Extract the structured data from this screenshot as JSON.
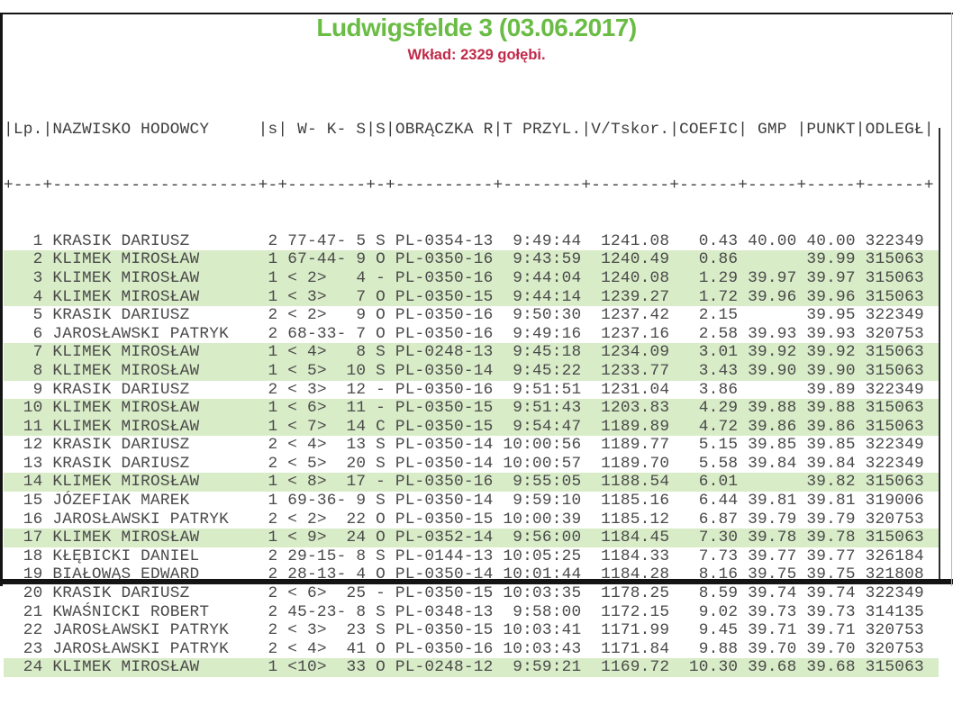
{
  "page": {
    "title": "Ludwigsfelde 3 (03.06.2017)",
    "subtitle": "Wkład: 2329 gołębi."
  },
  "colors": {
    "title_green": "#6abc45",
    "subtitle_red": "#c12949",
    "highlight_green": "#d9ecc8",
    "text_gray": "#4a4a4a",
    "header_gray": "#3d3d3d",
    "border_black": "#141414"
  },
  "table": {
    "header_line": "|Lp.|NAZWISKO HODOWCY     |s| W- K- S|S|OBRĄCZKA R|T PRZYL.|V/Tskor.|COEFIC| GMP |PUNKT|ODLEGŁ|",
    "separator_line": "+---+---------------------+-+--------+-+----------+--------+--------+------+-----+-----+------+",
    "columns": [
      "Lp.",
      "NAZWISKO HODOWCY",
      "s",
      "W- K- S",
      "S",
      "OBRĄCZKA R",
      "T PRZYL.",
      "V/Tskor.",
      "COEFIC",
      "GMP",
      "PUNKT",
      "ODLEGŁ"
    ],
    "rows": [
      {
        "lp": "1",
        "name": "KRASIK DARIUSZ",
        "s": "2",
        "wks": "77-47- 5",
        "sex": "S",
        "ring": "PL-0354-13",
        "time": "9:49:44",
        "v": "1241.08",
        "coef": "0.43",
        "gmp": "40.00",
        "punkt": "40.00",
        "dist": "322349",
        "hl": false
      },
      {
        "lp": "2",
        "name": "KLIMEK MIROSŁAW",
        "s": "1",
        "wks": "67-44- 9",
        "sex": "O",
        "ring": "PL-0350-16",
        "time": "9:43:59",
        "v": "1240.49",
        "coef": "0.86",
        "gmp": "",
        "punkt": "39.99",
        "dist": "315063",
        "hl": true
      },
      {
        "lp": "3",
        "name": "KLIMEK MIROSŁAW",
        "s": "1",
        "wks": "< 2>   4",
        "sex": "-",
        "ring": "PL-0350-16",
        "time": "9:44:04",
        "v": "1240.08",
        "coef": "1.29",
        "gmp": "39.97",
        "punkt": "39.97",
        "dist": "315063",
        "hl": true
      },
      {
        "lp": "4",
        "name": "KLIMEK MIROSŁAW",
        "s": "1",
        "wks": "< 3>   7",
        "sex": "O",
        "ring": "PL-0350-15",
        "time": "9:44:14",
        "v": "1239.27",
        "coef": "1.72",
        "gmp": "39.96",
        "punkt": "39.96",
        "dist": "315063",
        "hl": true
      },
      {
        "lp": "5",
        "name": "KRASIK DARIUSZ",
        "s": "2",
        "wks": "< 2>   9",
        "sex": "O",
        "ring": "PL-0350-16",
        "time": "9:50:30",
        "v": "1237.42",
        "coef": "2.15",
        "gmp": "",
        "punkt": "39.95",
        "dist": "322349",
        "hl": false
      },
      {
        "lp": "6",
        "name": "JAROSŁAWSKI PATRYK",
        "s": "2",
        "wks": "68-33- 7",
        "sex": "O",
        "ring": "PL-0350-16",
        "time": "9:49:16",
        "v": "1237.16",
        "coef": "2.58",
        "gmp": "39.93",
        "punkt": "39.93",
        "dist": "320753",
        "hl": false
      },
      {
        "lp": "7",
        "name": "KLIMEK MIROSŁAW",
        "s": "1",
        "wks": "< 4>   8",
        "sex": "S",
        "ring": "PL-0248-13",
        "time": "9:45:18",
        "v": "1234.09",
        "coef": "3.01",
        "gmp": "39.92",
        "punkt": "39.92",
        "dist": "315063",
        "hl": true
      },
      {
        "lp": "8",
        "name": "KLIMEK MIROSŁAW",
        "s": "1",
        "wks": "< 5>  10",
        "sex": "S",
        "ring": "PL-0350-14",
        "time": "9:45:22",
        "v": "1233.77",
        "coef": "3.43",
        "gmp": "39.90",
        "punkt": "39.90",
        "dist": "315063",
        "hl": true
      },
      {
        "lp": "9",
        "name": "KRASIK DARIUSZ",
        "s": "2",
        "wks": "< 3>  12",
        "sex": "-",
        "ring": "PL-0350-16",
        "time": "9:51:51",
        "v": "1231.04",
        "coef": "3.86",
        "gmp": "",
        "punkt": "39.89",
        "dist": "322349",
        "hl": false
      },
      {
        "lp": "10",
        "name": "KLIMEK MIROSŁAW",
        "s": "1",
        "wks": "< 6>  11",
        "sex": "-",
        "ring": "PL-0350-15",
        "time": "9:51:43",
        "v": "1203.83",
        "coef": "4.29",
        "gmp": "39.88",
        "punkt": "39.88",
        "dist": "315063",
        "hl": true
      },
      {
        "lp": "11",
        "name": "KLIMEK MIROSŁAW",
        "s": "1",
        "wks": "< 7>  14",
        "sex": "C",
        "ring": "PL-0350-15",
        "time": "9:54:47",
        "v": "1189.89",
        "coef": "4.72",
        "gmp": "39.86",
        "punkt": "39.86",
        "dist": "315063",
        "hl": true
      },
      {
        "lp": "12",
        "name": "KRASIK DARIUSZ",
        "s": "2",
        "wks": "< 4>  13",
        "sex": "S",
        "ring": "PL-0350-14",
        "time": "10:00:56",
        "v": "1189.77",
        "coef": "5.15",
        "gmp": "39.85",
        "punkt": "39.85",
        "dist": "322349",
        "hl": false
      },
      {
        "lp": "13",
        "name": "KRASIK DARIUSZ",
        "s": "2",
        "wks": "< 5>  20",
        "sex": "S",
        "ring": "PL-0350-14",
        "time": "10:00:57",
        "v": "1189.70",
        "coef": "5.58",
        "gmp": "39.84",
        "punkt": "39.84",
        "dist": "322349",
        "hl": false
      },
      {
        "lp": "14",
        "name": "KLIMEK MIROSŁAW",
        "s": "1",
        "wks": "< 8>  17",
        "sex": "-",
        "ring": "PL-0350-16",
        "time": "9:55:05",
        "v": "1188.54",
        "coef": "6.01",
        "gmp": "",
        "punkt": "39.82",
        "dist": "315063",
        "hl": true
      },
      {
        "lp": "15",
        "name": "JÓZEFIAK MAREK",
        "s": "1",
        "wks": "69-36- 9",
        "sex": "S",
        "ring": "PL-0350-14",
        "time": "9:59:10",
        "v": "1185.16",
        "coef": "6.44",
        "gmp": "39.81",
        "punkt": "39.81",
        "dist": "319006",
        "hl": false
      },
      {
        "lp": "16",
        "name": "JAROSŁAWSKI PATRYK",
        "s": "2",
        "wks": "< 2>  22",
        "sex": "O",
        "ring": "PL-0350-15",
        "time": "10:00:39",
        "v": "1185.12",
        "coef": "6.87",
        "gmp": "39.79",
        "punkt": "39.79",
        "dist": "320753",
        "hl": false
      },
      {
        "lp": "17",
        "name": "KLIMEK MIROSŁAW",
        "s": "1",
        "wks": "< 9>  24",
        "sex": "O",
        "ring": "PL-0352-14",
        "time": "9:56:00",
        "v": "1184.45",
        "coef": "7.30",
        "gmp": "39.78",
        "punkt": "39.78",
        "dist": "315063",
        "hl": true
      },
      {
        "lp": "18",
        "name": "KŁĘBICKI DANIEL",
        "s": "2",
        "wks": "29-15- 8",
        "sex": "S",
        "ring": "PL-0144-13",
        "time": "10:05:25",
        "v": "1184.33",
        "coef": "7.73",
        "gmp": "39.77",
        "punkt": "39.77",
        "dist": "326184",
        "hl": false
      },
      {
        "lp": "19",
        "name": "BIAŁOWĄS EDWARD",
        "s": "2",
        "wks": "28-13- 4",
        "sex": "O",
        "ring": "PL-0350-14",
        "time": "10:01:44",
        "v": "1184.28",
        "coef": "8.16",
        "gmp": "39.75",
        "punkt": "39.75",
        "dist": "321808",
        "hl": false
      },
      {
        "lp": "20",
        "name": "KRASIK DARIUSZ",
        "s": "2",
        "wks": "< 6>  25",
        "sex": "-",
        "ring": "PL-0350-15",
        "time": "10:03:35",
        "v": "1178.25",
        "coef": "8.59",
        "gmp": "39.74",
        "punkt": "39.74",
        "dist": "322349",
        "hl": false
      },
      {
        "lp": "21",
        "name": "KWAŚNICKI ROBERT",
        "s": "2",
        "wks": "45-23- 8",
        "sex": "S",
        "ring": "PL-0348-13",
        "time": "9:58:00",
        "v": "1172.15",
        "coef": "9.02",
        "gmp": "39.73",
        "punkt": "39.73",
        "dist": "314135",
        "hl": false
      },
      {
        "lp": "22",
        "name": "JAROSŁAWSKI PATRYK",
        "s": "2",
        "wks": "< 3>  23",
        "sex": "S",
        "ring": "PL-0350-15",
        "time": "10:03:41",
        "v": "1171.99",
        "coef": "9.45",
        "gmp": "39.71",
        "punkt": "39.71",
        "dist": "320753",
        "hl": false
      },
      {
        "lp": "23",
        "name": "JAROSŁAWSKI PATRYK",
        "s": "2",
        "wks": "< 4>  41",
        "sex": "O",
        "ring": "PL-0350-16",
        "time": "10:03:43",
        "v": "1171.84",
        "coef": "9.88",
        "gmp": "39.70",
        "punkt": "39.70",
        "dist": "320753",
        "hl": false
      },
      {
        "lp": "24",
        "name": "KLIMEK MIROSŁAW",
        "s": "1",
        "wks": "<10>  33",
        "sex": "O",
        "ring": "PL-0248-12",
        "time": "9:59:21",
        "v": "1169.72",
        "coef": "10.30",
        "gmp": "39.68",
        "punkt": "39.68",
        "dist": "315063",
        "hl": true
      }
    ]
  }
}
